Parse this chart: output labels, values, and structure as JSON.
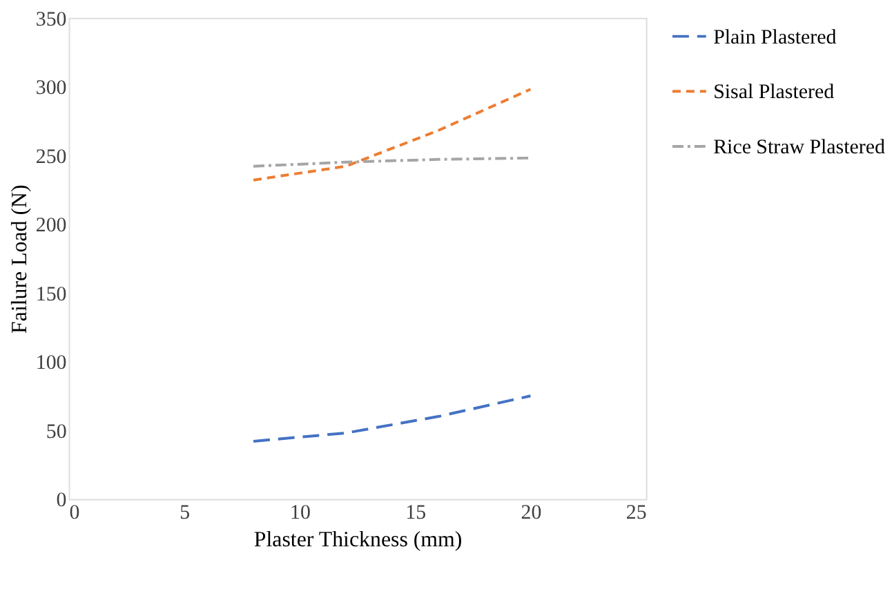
{
  "chart_data": {
    "type": "line",
    "xlabel": "Plaster Thickness (mm)",
    "ylabel": "Failure Load (N)",
    "x": [
      8,
      12,
      16,
      20
    ],
    "series": [
      {
        "name": "Plain Plastered",
        "color": "#4472c4",
        "line_style": "longdash",
        "values": [
          42,
          48,
          60,
          75
        ]
      },
      {
        "name": "Sisal Plastered",
        "color": "#ed7d31",
        "line_style": "dashed",
        "values": [
          232,
          242,
          268,
          298
        ]
      },
      {
        "name": "Rice Straw Plastered",
        "color": "#a5a5a5",
        "line_style": "dashdot",
        "values": [
          242,
          245,
          247,
          248
        ]
      }
    ],
    "xlim": [
      0,
      25
    ],
    "xticks": [
      0,
      5,
      10,
      15,
      20,
      25
    ],
    "ylim": [
      0,
      350
    ],
    "yticks": [
      0,
      50,
      100,
      150,
      200,
      250,
      300,
      350
    ],
    "grid": false,
    "legend": "right",
    "marker": "none"
  }
}
